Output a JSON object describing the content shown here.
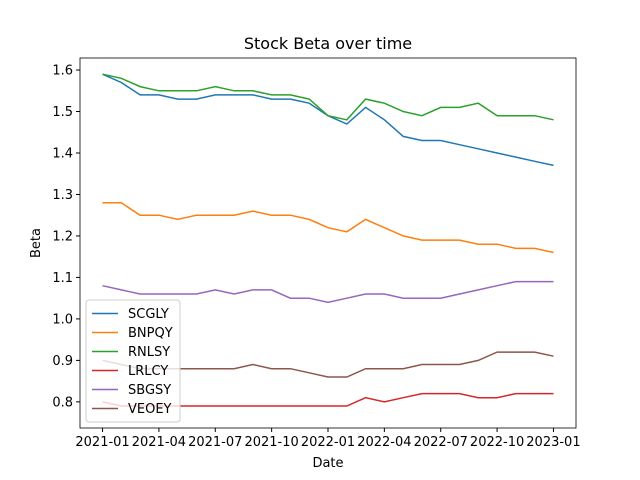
{
  "chart_data": {
    "type": "line",
    "title": "Stock Beta over time",
    "xlabel": "Date",
    "ylabel": "Beta",
    "x": [
      "2021-01",
      "2021-02",
      "2021-03",
      "2021-04",
      "2021-05",
      "2021-06",
      "2021-07",
      "2021-08",
      "2021-09",
      "2021-10",
      "2021-11",
      "2021-12",
      "2022-01",
      "2022-02",
      "2022-03",
      "2022-04",
      "2022-05",
      "2022-06",
      "2022-07",
      "2022-08",
      "2022-09",
      "2022-10",
      "2022-11",
      "2022-12",
      "2023-01"
    ],
    "series": [
      {
        "name": "SCGLY",
        "color": "#1f77b4",
        "values": [
          1.59,
          1.57,
          1.54,
          1.54,
          1.53,
          1.53,
          1.54,
          1.54,
          1.54,
          1.53,
          1.53,
          1.52,
          1.49,
          1.47,
          1.51,
          1.48,
          1.44,
          1.43,
          1.43,
          1.42,
          1.41,
          1.4,
          1.39,
          1.38,
          1.37
        ]
      },
      {
        "name": "BNPQY",
        "color": "#ff7f0e",
        "values": [
          1.28,
          1.28,
          1.25,
          1.25,
          1.24,
          1.25,
          1.25,
          1.25,
          1.26,
          1.25,
          1.25,
          1.24,
          1.22,
          1.21,
          1.24,
          1.22,
          1.2,
          1.19,
          1.19,
          1.19,
          1.18,
          1.18,
          1.17,
          1.17,
          1.16
        ]
      },
      {
        "name": "RNLSY",
        "color": "#2ca02c",
        "values": [
          1.59,
          1.58,
          1.56,
          1.55,
          1.55,
          1.55,
          1.56,
          1.55,
          1.55,
          1.54,
          1.54,
          1.53,
          1.49,
          1.48,
          1.53,
          1.52,
          1.5,
          1.49,
          1.51,
          1.51,
          1.52,
          1.49,
          1.49,
          1.49,
          1.48
        ]
      },
      {
        "name": "LRLCY",
        "color": "#d62728",
        "values": [
          0.8,
          0.79,
          0.79,
          0.79,
          0.79,
          0.79,
          0.79,
          0.79,
          0.79,
          0.79,
          0.79,
          0.79,
          0.79,
          0.79,
          0.81,
          0.8,
          0.81,
          0.82,
          0.82,
          0.82,
          0.81,
          0.81,
          0.82,
          0.82,
          0.82
        ]
      },
      {
        "name": "SBGSY",
        "color": "#9467bd",
        "values": [
          1.08,
          1.07,
          1.06,
          1.06,
          1.06,
          1.06,
          1.07,
          1.06,
          1.07,
          1.07,
          1.05,
          1.05,
          1.04,
          1.05,
          1.06,
          1.06,
          1.05,
          1.05,
          1.05,
          1.06,
          1.07,
          1.08,
          1.09,
          1.09,
          1.09
        ]
      },
      {
        "name": "VEOEY",
        "color": "#8c564b",
        "values": [
          0.9,
          0.89,
          0.88,
          0.88,
          0.88,
          0.88,
          0.88,
          0.88,
          0.89,
          0.88,
          0.88,
          0.87,
          0.86,
          0.86,
          0.88,
          0.88,
          0.88,
          0.89,
          0.89,
          0.89,
          0.9,
          0.92,
          0.92,
          0.92,
          0.91
        ]
      }
    ],
    "ylim": [
      0.737,
      1.629
    ],
    "yticks": [
      {
        "value": 0.8,
        "label": "0.8"
      },
      {
        "value": 0.9,
        "label": "0.9"
      },
      {
        "value": 1.0,
        "label": "1.0"
      },
      {
        "value": 1.1,
        "label": "1.1"
      },
      {
        "value": 1.2,
        "label": "1.2"
      },
      {
        "value": 1.3,
        "label": "1.3"
      },
      {
        "value": 1.4,
        "label": "1.4"
      },
      {
        "value": 1.5,
        "label": "1.5"
      },
      {
        "value": 1.6,
        "label": "1.6"
      }
    ],
    "xticks": [
      "2021-01",
      "2021-04",
      "2021-07",
      "2021-10",
      "2022-01",
      "2022-04",
      "2022-07",
      "2022-10",
      "2023-01"
    ],
    "legend": "lower left"
  }
}
